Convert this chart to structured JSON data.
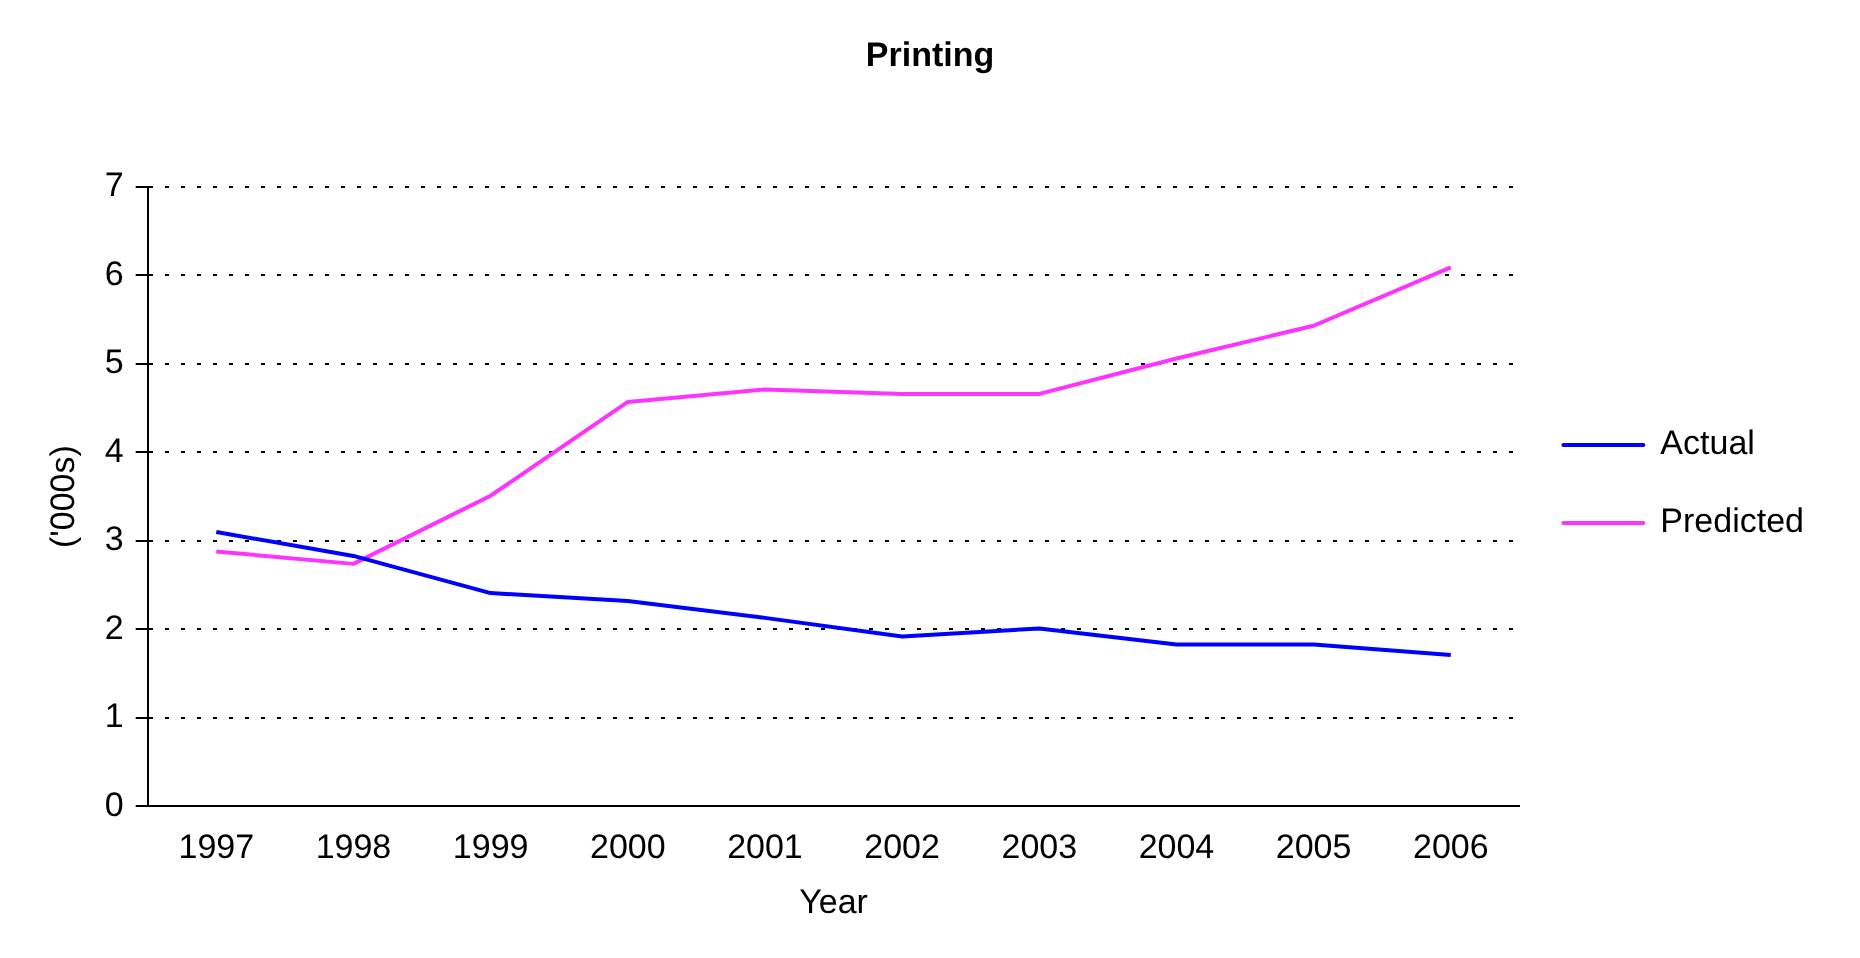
{
  "chart_data": {
    "type": "line",
    "title": "Printing",
    "xlabel": "Year",
    "ylabel": "('000s)",
    "categories": [
      "1997",
      "1998",
      "1999",
      "2000",
      "2001",
      "2002",
      "2003",
      "2004",
      "2005",
      "2006"
    ],
    "series": [
      {
        "name": "Actual",
        "color": "#0000ff",
        "values": [
          3.1,
          2.83,
          2.41,
          2.32,
          2.13,
          1.92,
          2.01,
          1.83,
          1.83,
          1.71
        ]
      },
      {
        "name": "Predicted",
        "color": "#ff33ff",
        "values": [
          2.88,
          2.74,
          3.51,
          4.57,
          4.71,
          4.66,
          4.66,
          5.06,
          5.43,
          6.09
        ]
      }
    ],
    "ylim": [
      0,
      7
    ],
    "yticks": [
      0,
      1,
      2,
      3,
      4,
      5,
      6,
      7
    ],
    "grid": "y",
    "legend": "right",
    "marker": "none",
    "line_style": "solid"
  }
}
